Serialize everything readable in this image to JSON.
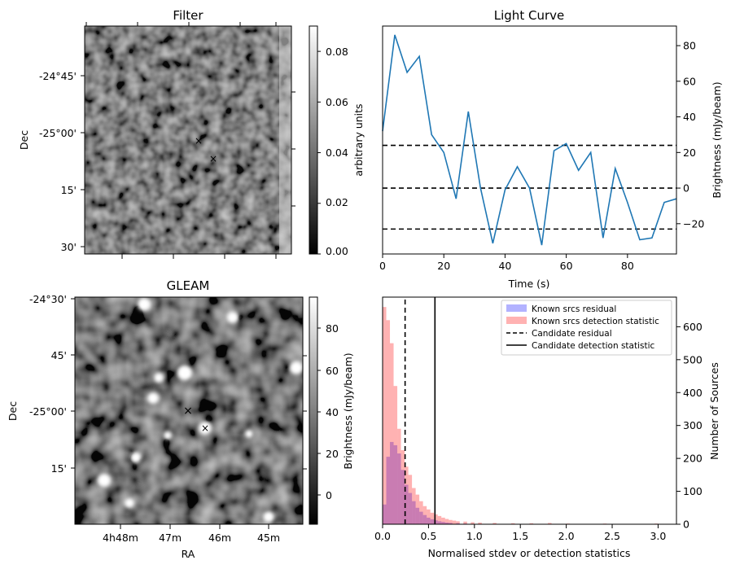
{
  "chart_data": [
    {
      "type": "heatmap",
      "title": "Filter",
      "ylabel": "Dec",
      "yticks": [
        "-24°45'",
        "-25°00'",
        "15'",
        "30'"
      ],
      "colorbar": {
        "label": "arbitrary units",
        "range": [
          0.0,
          0.09
        ],
        "ticks": [
          "0.00",
          "0.02",
          "0.04",
          "0.06",
          "0.08"
        ]
      },
      "markers": [
        {
          "symbol": "×",
          "color": "#ff0000"
        },
        {
          "symbol": "×",
          "color": "#0000ff"
        }
      ]
    },
    {
      "type": "line",
      "title": "Light Curve",
      "xlabel": "Time (s)",
      "ylabel": "Brightness (mJy/beam)",
      "xlim": [
        0,
        96
      ],
      "ylim": [
        -37,
        91
      ],
      "xticks": [
        "0",
        "20",
        "40",
        "60",
        "80"
      ],
      "yticks": [
        "-20",
        "0",
        "20",
        "40",
        "60",
        "80"
      ],
      "x": [
        0,
        4,
        8,
        12,
        16,
        20,
        24,
        28,
        32,
        36,
        40,
        44,
        48,
        52,
        56,
        60,
        64,
        68,
        72,
        76,
        80,
        84,
        88,
        92,
        96
      ],
      "y": [
        32,
        86,
        65,
        74,
        30,
        20,
        -6,
        43,
        0,
        -31,
        -1,
        12,
        0,
        -32,
        21,
        25,
        10,
        20,
        -28,
        11,
        -8,
        -29,
        -28,
        -8,
        -6
      ],
      "color": "#1f77b4",
      "hlines": [
        24,
        0,
        -23
      ]
    },
    {
      "type": "heatmap",
      "title": "GLEAM",
      "xlabel": "RA",
      "ylabel": "Dec",
      "xticks": [
        "4h48m",
        "47m",
        "46m",
        "45m"
      ],
      "yticks": [
        "-24°30'",
        "45'",
        "-25°00'",
        "15'"
      ],
      "colorbar": {
        "label": "Brightness (mJy/beam)",
        "range": [
          -14,
          94
        ],
        "ticks": [
          "0",
          "20",
          "40",
          "60",
          "80"
        ]
      },
      "markers": [
        {
          "symbol": "×",
          "color": "#ff0000"
        },
        {
          "symbol": "×",
          "color": "#0000ff"
        }
      ]
    },
    {
      "type": "bar",
      "subtype": "histogram",
      "xlabel": "Normalised stdev or detection statistics",
      "ylabel": "Number of Sources",
      "xlim": [
        0,
        3.2
      ],
      "ylim": [
        0,
        690
      ],
      "xticks": [
        "0.0",
        "0.5",
        "1.0",
        "1.5",
        "2.0",
        "2.5",
        "3.0"
      ],
      "yticks": [
        "0",
        "100",
        "200",
        "300",
        "400",
        "500",
        "600"
      ],
      "bin_width": 0.04,
      "series": [
        {
          "name": "Known srcs residual",
          "color": "#0000ff",
          "alpha": 0.3,
          "bin_starts": [
            0.0,
            0.04,
            0.08,
            0.12,
            0.16,
            0.2,
            0.24,
            0.28,
            0.32,
            0.36,
            0.4,
            0.44,
            0.48,
            0.52,
            0.56,
            0.6,
            0.64,
            0.68,
            0.72,
            0.8,
            0.88,
            1.0
          ],
          "values": [
            60,
            205,
            250,
            240,
            215,
            165,
            120,
            95,
            70,
            50,
            38,
            28,
            20,
            15,
            12,
            9,
            7,
            5,
            4,
            3,
            2,
            1
          ]
        },
        {
          "name": "Known srcs detection statistic",
          "color": "#ff0000",
          "alpha": 0.3,
          "bin_starts": [
            0.0,
            0.04,
            0.08,
            0.12,
            0.16,
            0.2,
            0.24,
            0.28,
            0.32,
            0.36,
            0.4,
            0.44,
            0.48,
            0.52,
            0.56,
            0.6,
            0.64,
            0.68,
            0.72,
            0.76,
            0.8,
            0.88,
            0.96,
            1.04,
            1.2,
            1.4,
            1.6,
            1.8,
            2.0,
            2.4,
            2.8,
            2.96
          ],
          "values": [
            660,
            620,
            550,
            420,
            290,
            225,
            175,
            150,
            110,
            90,
            70,
            55,
            45,
            35,
            30,
            25,
            20,
            16,
            13,
            11,
            9,
            8,
            6,
            5,
            4,
            3,
            3,
            4,
            2,
            2,
            1,
            2
          ]
        }
      ],
      "vlines": [
        {
          "name": "Candidate residual",
          "x": 0.245,
          "style": "dashed",
          "color": "#000000"
        },
        {
          "name": "Candidate detection statistic",
          "x": 0.57,
          "style": "solid",
          "color": "#000000"
        }
      ],
      "legend_position": "top-right"
    }
  ]
}
